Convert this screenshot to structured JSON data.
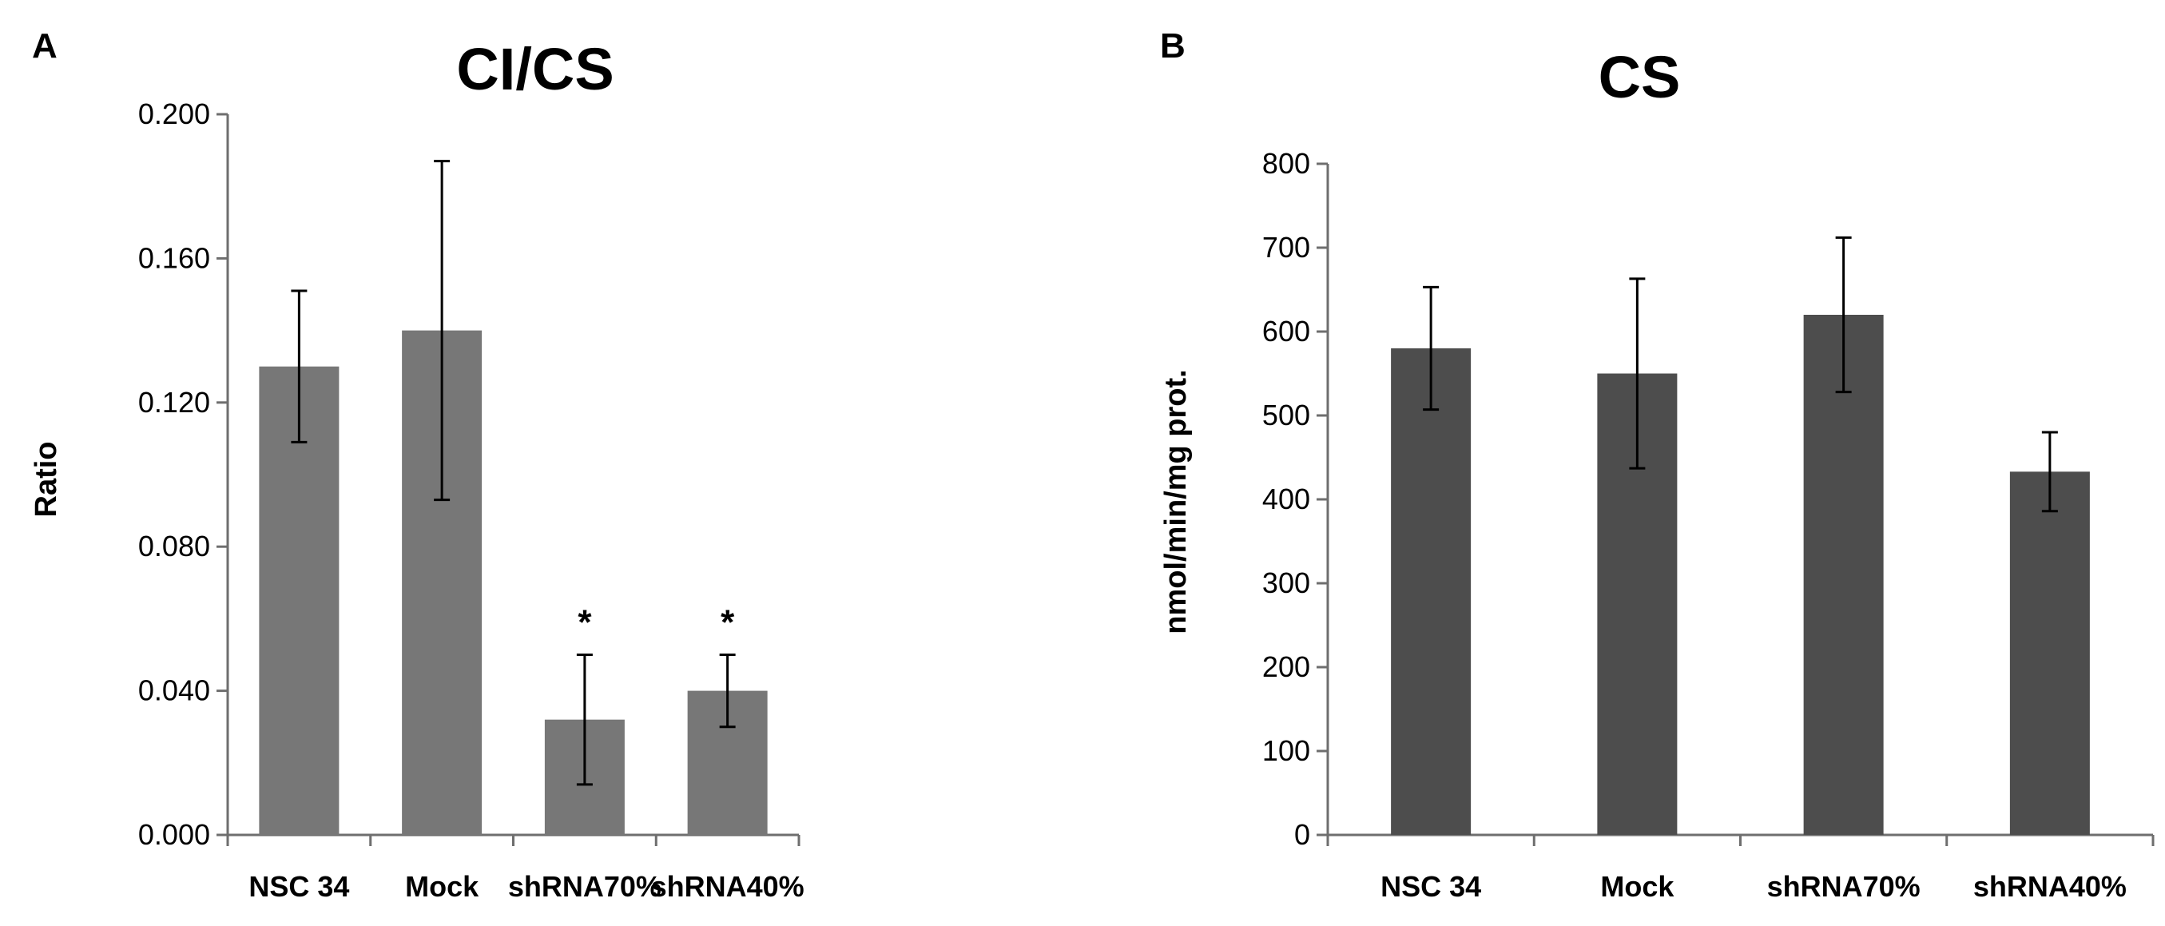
{
  "chart_data": [
    {
      "panel": "A",
      "type": "bar",
      "title": "CI/CS",
      "xlabel": "",
      "ylabel": "Ratio",
      "ylim": [
        0,
        0.2
      ],
      "yticks": [
        "0.000",
        "0.040",
        "0.080",
        "0.120",
        "0.160",
        "0.200"
      ],
      "categories": [
        "NSC 34",
        "Mock",
        "shRNA70%",
        "shRNA40%"
      ],
      "values": [
        0.13,
        0.14,
        0.032,
        0.04
      ],
      "errors": [
        0.021,
        0.047,
        0.018,
        0.01
      ],
      "annotations": [
        "",
        "",
        "*",
        "*"
      ],
      "bar_color": "#777777",
      "grid": false
    },
    {
      "panel": "B",
      "type": "bar",
      "title": "CS",
      "xlabel": "",
      "ylabel": "nmol/min/mg prot.",
      "ylim": [
        0,
        800
      ],
      "yticks": [
        "0",
        "100",
        "200",
        "300",
        "400",
        "500",
        "600",
        "700",
        "800"
      ],
      "categories": [
        "NSC 34",
        "Mock",
        "shRNA70%",
        "shRNA40%"
      ],
      "values": [
        580,
        550,
        620,
        433
      ],
      "errors": [
        73,
        113,
        92,
        47
      ],
      "annotations": [
        "",
        "",
        "",
        ""
      ],
      "bar_color": "#4d4d4d",
      "grid": false
    }
  ]
}
